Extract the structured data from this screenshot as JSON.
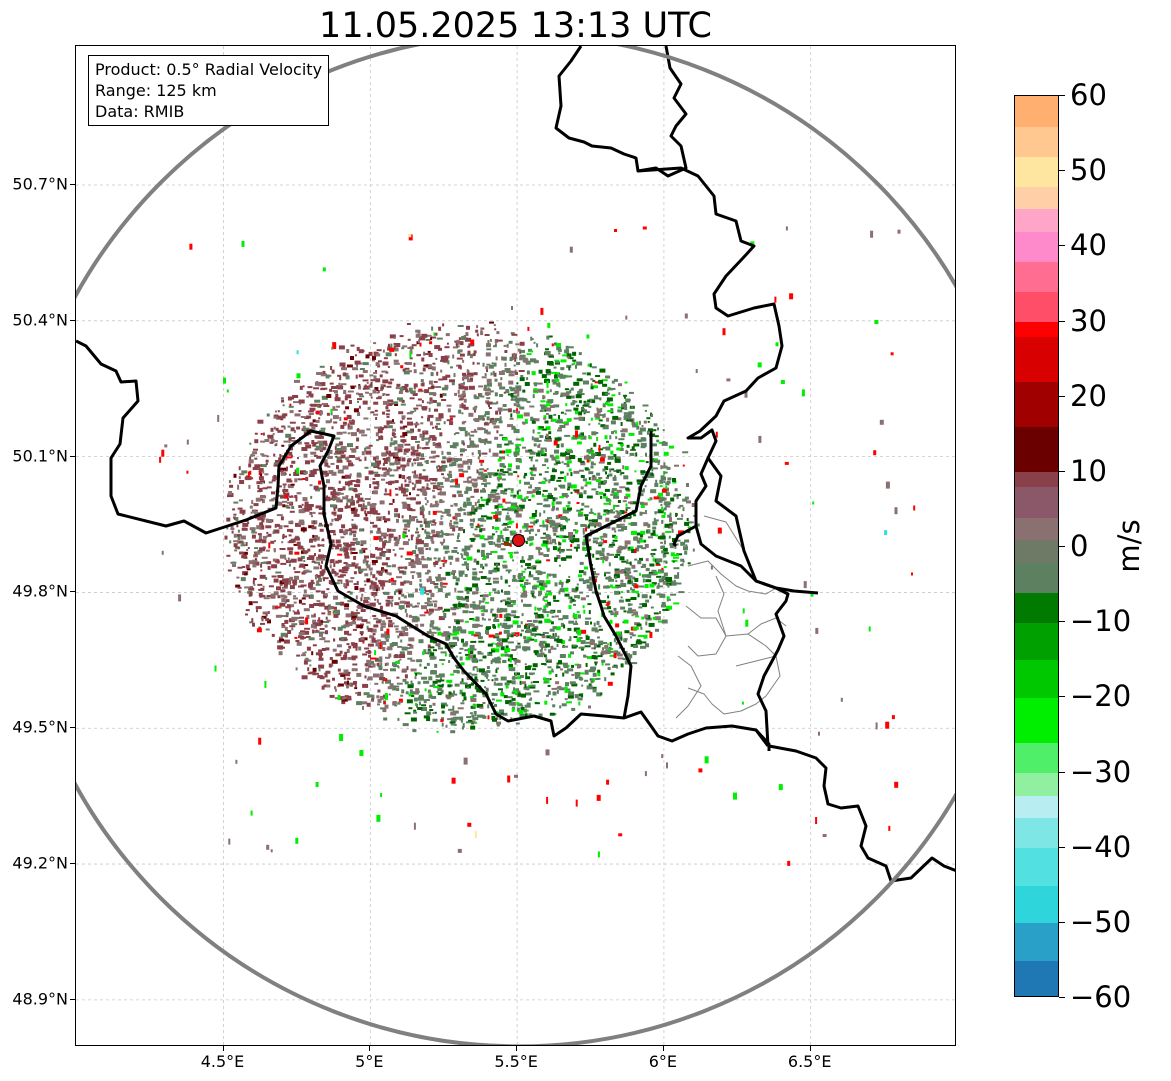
{
  "title": "11.05.2025 13:13 UTC",
  "info_box": {
    "product": "Product: 0.5° Radial Velocity",
    "range": "Range: 125 km",
    "source": "Data: RMIB"
  },
  "map": {
    "extent": {
      "lon_min": 4.0,
      "lon_max": 7.0,
      "lat_min": 48.8,
      "lat_max": 50.98
    },
    "radar_site": {
      "lon": 5.505,
      "lat": 49.915,
      "color": "#dd1111"
    },
    "range_ring_color": "#808080",
    "border_color": "#000000",
    "admin_border_color": "#808080",
    "grid": true,
    "lat_ticks": [
      "50.7°N",
      "50.4°N",
      "50.1°N",
      "49.8°N",
      "49.5°N",
      "49.2°N",
      "48.9°N"
    ],
    "lat_values": [
      50.7,
      50.4,
      50.1,
      49.8,
      49.5,
      49.2,
      48.9
    ],
    "lon_ticks": [
      "4.5°E",
      "5°E",
      "5.5°E",
      "6°E",
      "6.5°E"
    ],
    "lon_values": [
      4.5,
      5.0,
      5.5,
      6.0,
      6.5
    ]
  },
  "colorbar": {
    "unit": "m/s",
    "min": -60,
    "max": 60,
    "tick_labels": [
      "60",
      "50",
      "40",
      "30",
      "20",
      "10",
      "0",
      "−10",
      "−20",
      "−30",
      "−40",
      "−50",
      "−60"
    ],
    "tick_values": [
      60,
      50,
      40,
      30,
      20,
      10,
      0,
      -10,
      -20,
      -30,
      -40,
      -50,
      -60
    ],
    "colors": {
      "inbound_far": "#1f77b4",
      "inbound_cyan": "#2ee0e0",
      "inbound_lightcyan": "#b8eef2",
      "inbound_lightgreen": "#90f0a0",
      "inbound_green": "#00ee00",
      "inbound_darkgreen": "#006400",
      "near_zero_green": "#5c8060",
      "near_zero_gray": "#8a7070",
      "near_zero_maroon": "#8a4048",
      "outbound_darkred": "#6a0000",
      "outbound_red": "#ff0000",
      "outbound_pink": "#ff8acb",
      "outbound_tan": "#ffe6a0",
      "outbound_orange": "#ff9d5a"
    }
  }
}
